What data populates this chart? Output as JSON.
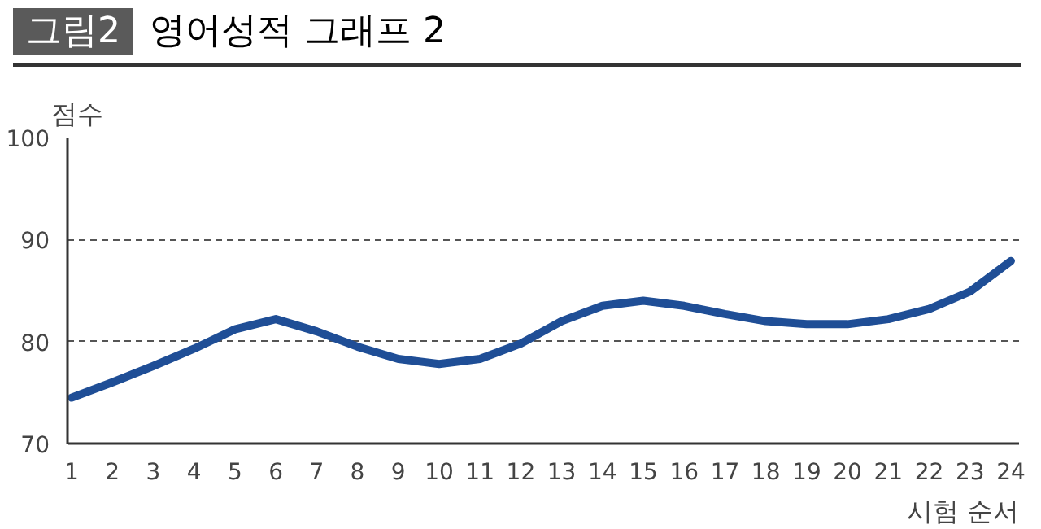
{
  "chart_data": {
    "type": "line",
    "title": "영어성적 그래프 2",
    "annotations": [
      "그림2"
    ],
    "ylabel": "점수",
    "xlabel": "시험 순서",
    "x": [
      1,
      2,
      3,
      4,
      5,
      6,
      7,
      8,
      9,
      10,
      11,
      12,
      13,
      14,
      15,
      16,
      17,
      18,
      19,
      20,
      21,
      22,
      23,
      24
    ],
    "series": [
      {
        "color": "#1f4e96",
        "values": [
          74.5,
          76,
          77.6,
          79.3,
          81.2,
          82.2,
          81,
          79.5,
          78.3,
          77.8,
          78.3,
          79.8,
          82,
          83.5,
          84,
          83.5,
          82.7,
          82,
          81.7,
          81.7,
          82.2,
          83.2,
          84.9,
          87.9
        ]
      }
    ],
    "xlim": [
      0.9,
      24.2
    ],
    "xticks": [
      1,
      2,
      3,
      4,
      5,
      6,
      7,
      8,
      9,
      10,
      11,
      12,
      13,
      14,
      15,
      16,
      17,
      18,
      19,
      20,
      21,
      22,
      23,
      24
    ],
    "ylim": [
      70,
      100
    ],
    "yticks": [
      70,
      80,
      90,
      100
    ],
    "grid": "y",
    "line_style": "solid",
    "marker": "none"
  }
}
